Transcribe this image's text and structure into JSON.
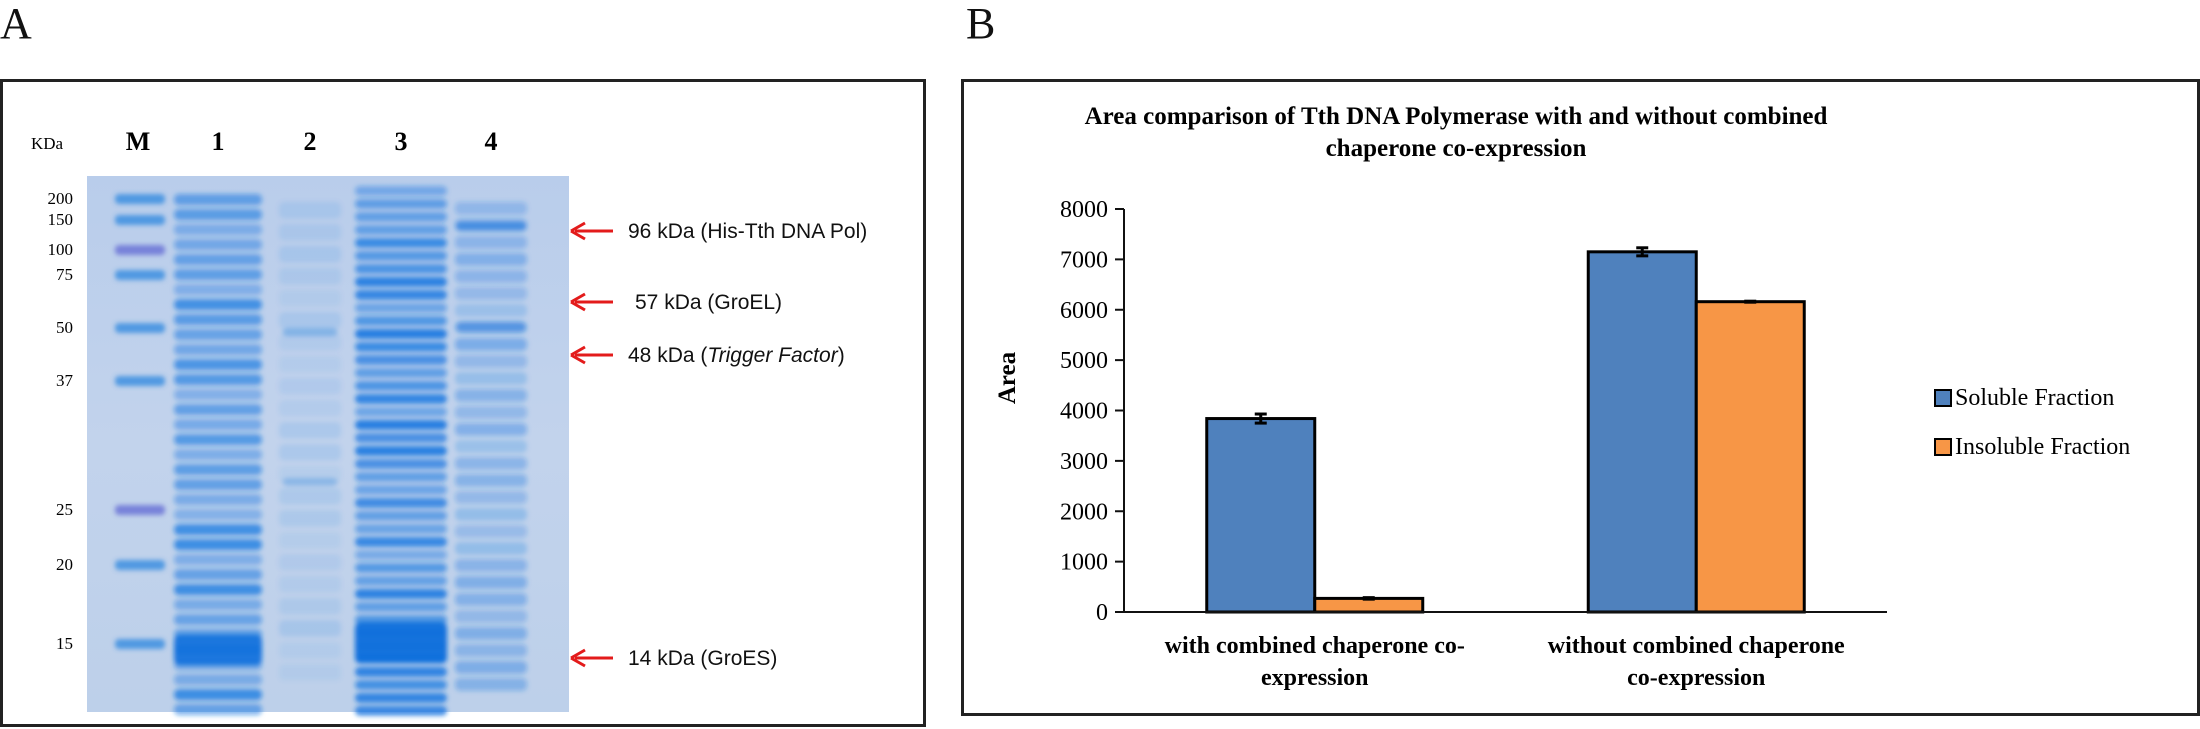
{
  "panel_a": {
    "letter": "A",
    "kda_label": "KDa",
    "lane_labels": [
      "M",
      "1",
      "2",
      "3",
      "4"
    ],
    "marker_labels": [
      "200",
      "150",
      "100",
      "75",
      "50",
      "37",
      "25",
      "20",
      "15"
    ],
    "annotations": [
      {
        "text": "96 kDa (His-Tth DNA Pol)",
        "prefix": "96 kDa (His-Tth DNA Pol)",
        "italic": "",
        "suffix": ""
      },
      {
        "text": "57 kDa (GroEL)",
        "prefix": "57 kDa (GroEL)",
        "italic": "",
        "suffix": ""
      },
      {
        "text": "48 kDa (Trigger Factor)",
        "prefix": "48 kDa (",
        "italic": "Trigger Factor",
        "suffix": ")"
      },
      {
        "text": "14 kDa (GroES)",
        "prefix": "14 kDa (GroES",
        "italic": "",
        "suffix": ")"
      }
    ],
    "arrow_color": "#e31b1b"
  },
  "panel_b": {
    "letter": "B"
  },
  "chart_data": {
    "type": "bar",
    "title": "Area comparison of Tth DNA Polymerase with and without combined chaperone co-expression",
    "title_lines": [
      "Area comparison of Tth DNA Polymerase with and without combined",
      "chaperone co-expression"
    ],
    "xlabel": "",
    "ylabel": "Area",
    "ylim": [
      0,
      8000
    ],
    "yticks": [
      0,
      1000,
      2000,
      3000,
      4000,
      5000,
      6000,
      7000,
      8000
    ],
    "categories": [
      "with combined chaperone co-expression",
      "without combined chaperone co-expression"
    ],
    "category_lines": [
      [
        "with combined chaperone co-",
        "expression"
      ],
      [
        "without combined chaperone",
        "co-expression"
      ]
    ],
    "series": [
      {
        "name": "Soluble Fraction",
        "values": [
          3840,
          7150
        ],
        "errors": [
          90,
          80
        ],
        "color": "#4f81bd"
      },
      {
        "name": "Insoluble Fraction",
        "values": [
          270,
          6160
        ],
        "errors": [
          15,
          10
        ],
        "color": "#f79646"
      }
    ],
    "legend_position": "right",
    "grid": false
  }
}
